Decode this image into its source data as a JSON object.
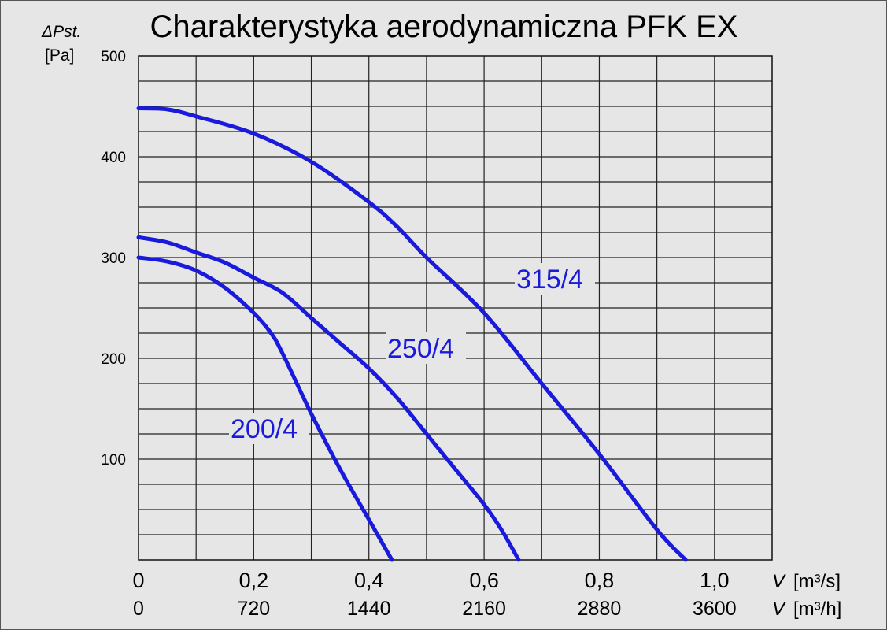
{
  "chart_data": {
    "type": "line",
    "title": "Charakterystyka aerodynamiczna PFK EX",
    "ylabel_symbol": "ΔPst.",
    "ylabel_unit": "[Pa]",
    "ylim": [
      0,
      500
    ],
    "yticks": [
      "100",
      "200",
      "300",
      "400",
      "500"
    ],
    "xlim": [
      0,
      1.1
    ],
    "xticks_primary": [
      "0",
      "0,2",
      "0,4",
      "0,6",
      "0,8",
      "1,0"
    ],
    "xticks_primary_values": [
      0,
      0.2,
      0.4,
      0.6,
      0.8,
      1.0
    ],
    "xlabel_primary_symbol": "V",
    "xlabel_primary_unit": "[m³/s]",
    "xticks_secondary": [
      "0",
      "720",
      "1440",
      "2160",
      "2880",
      "3600"
    ],
    "xlabel_secondary_symbol": "V",
    "xlabel_secondary_unit": "[m³/h]",
    "grid": true,
    "series": [
      {
        "name": "200/4",
        "color": "#1a1adc",
        "points": [
          [
            0,
            300
          ],
          [
            0.05,
            296
          ],
          [
            0.1,
            287
          ],
          [
            0.15,
            270
          ],
          [
            0.2,
            245
          ],
          [
            0.23,
            225
          ],
          [
            0.25,
            205
          ],
          [
            0.3,
            145
          ],
          [
            0.35,
            90
          ],
          [
            0.4,
            40
          ],
          [
            0.44,
            0
          ]
        ]
      },
      {
        "name": "250/4",
        "color": "#1a1adc",
        "points": [
          [
            0,
            320
          ],
          [
            0.05,
            315
          ],
          [
            0.1,
            305
          ],
          [
            0.15,
            295
          ],
          [
            0.2,
            280
          ],
          [
            0.25,
            265
          ],
          [
            0.3,
            240
          ],
          [
            0.35,
            215
          ],
          [
            0.4,
            190
          ],
          [
            0.45,
            160
          ],
          [
            0.5,
            125
          ],
          [
            0.55,
            90
          ],
          [
            0.6,
            55
          ],
          [
            0.63,
            30
          ],
          [
            0.66,
            0
          ]
        ]
      },
      {
        "name": "315/4",
        "color": "#1a1adc",
        "points": [
          [
            0,
            448
          ],
          [
            0.05,
            447
          ],
          [
            0.1,
            440
          ],
          [
            0.2,
            423
          ],
          [
            0.3,
            395
          ],
          [
            0.4,
            355
          ],
          [
            0.45,
            330
          ],
          [
            0.5,
            300
          ],
          [
            0.6,
            245
          ],
          [
            0.7,
            175
          ],
          [
            0.8,
            105
          ],
          [
            0.9,
            30
          ],
          [
            0.95,
            0
          ]
        ]
      }
    ]
  }
}
